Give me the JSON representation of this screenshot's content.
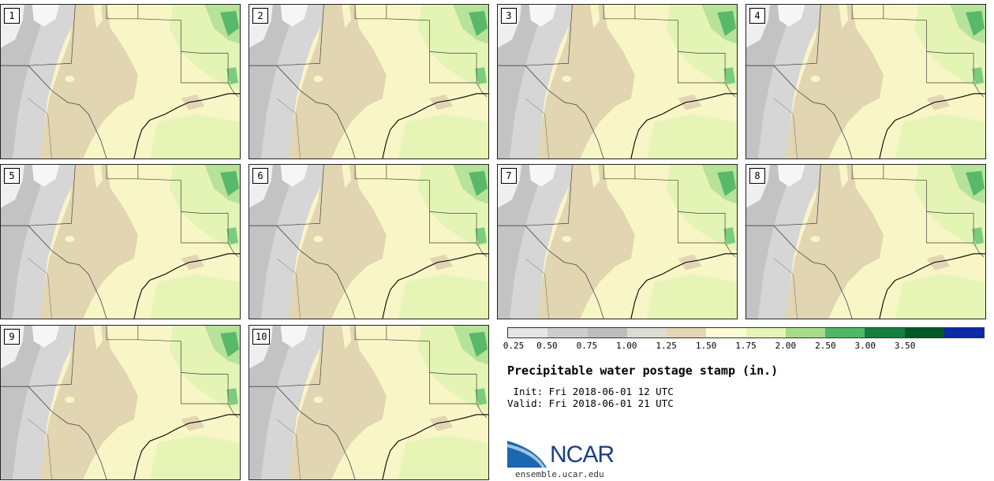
{
  "panels": [
    "1",
    "2",
    "3",
    "4",
    "5",
    "6",
    "7",
    "8",
    "9",
    "10"
  ],
  "colorbar": {
    "labels": [
      "0.25",
      "0.50",
      "0.75",
      "1.00",
      "1.25",
      "1.50",
      "1.75",
      "2.00",
      "2.50",
      "3.00",
      "3.50"
    ],
    "colors": [
      "#e6e6e6",
      "#cdcdcd",
      "#bdbdbd",
      "#dcdcd2",
      "#e3d6b4",
      "#fbfbd4",
      "#e6f5b6",
      "#a6dc8c",
      "#4fb868",
      "#10803c",
      "#035a26",
      "#0c2aa5"
    ]
  },
  "title": "Precipitable water postage stamp (in.)",
  "init": " Init: Fri 2018-06-01 12 UTC",
  "valid": "Valid: Fri 2018-06-01 21 UTC",
  "logo": {
    "text": "NCAR",
    "url": "ensemble.ucar.edu",
    "color": "#1b3f86"
  }
}
